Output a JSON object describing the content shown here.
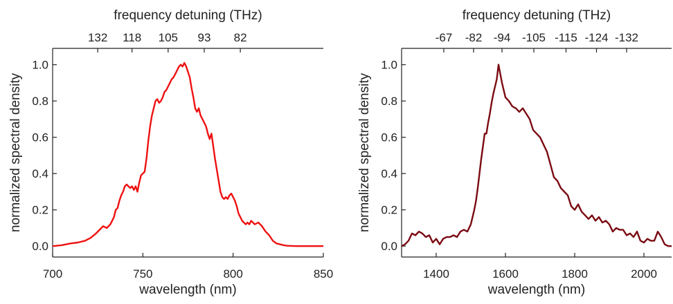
{
  "chart_data": [
    {
      "type": "line",
      "xlabel": "wavelength (nm)",
      "ylabel": "normalized spectral density",
      "top_xlabel": "frequency detuning (THz)",
      "xlim": [
        700,
        850
      ],
      "ylim": [
        -0.06,
        1.09
      ],
      "x_ticks": [
        700,
        750,
        800,
        850
      ],
      "y_ticks": [
        0.0,
        0.2,
        0.4,
        0.6,
        0.8,
        1.0
      ],
      "y_tick_labels": [
        "0.0",
        "0.2",
        "0.4",
        "0.6",
        "0.8",
        "1.0"
      ],
      "top_ticks": [
        {
          "label": "132",
          "at_x": 725
        },
        {
          "label": "118",
          "at_x": 744
        },
        {
          "label": "105",
          "at_x": 764
        },
        {
          "label": "93",
          "at_x": 784
        },
        {
          "label": "82",
          "at_x": 804
        }
      ],
      "grid": false,
      "color": "#ee1111",
      "series": [
        {
          "x": [
            700,
            705,
            710,
            714,
            718,
            721,
            724,
            726,
            728,
            730,
            732,
            734,
            735,
            736,
            737,
            738,
            739,
            740,
            741,
            742,
            743,
            744,
            745,
            746,
            747,
            748,
            749,
            750,
            751,
            752,
            753,
            754,
            755,
            756,
            757,
            758,
            759,
            760,
            761,
            762,
            763,
            764,
            765,
            766,
            767,
            768,
            769,
            770,
            771,
            772,
            773,
            774,
            775,
            776,
            777,
            778,
            779,
            780,
            781,
            782,
            783,
            784,
            785,
            786,
            787,
            788,
            789,
            790,
            791,
            792,
            793,
            794,
            795,
            796,
            797,
            798,
            799,
            800,
            801,
            802,
            803,
            804,
            805,
            806,
            807,
            808,
            809,
            810,
            812,
            814,
            816,
            818,
            820,
            822,
            824,
            826,
            828,
            830,
            835,
            840,
            845,
            850
          ],
          "y": [
            0.0,
            0.005,
            0.015,
            0.02,
            0.03,
            0.045,
            0.07,
            0.09,
            0.11,
            0.1,
            0.12,
            0.16,
            0.2,
            0.21,
            0.25,
            0.28,
            0.3,
            0.33,
            0.34,
            0.33,
            0.32,
            0.33,
            0.31,
            0.33,
            0.3,
            0.35,
            0.39,
            0.4,
            0.41,
            0.48,
            0.58,
            0.66,
            0.72,
            0.76,
            0.8,
            0.81,
            0.79,
            0.8,
            0.82,
            0.85,
            0.86,
            0.88,
            0.9,
            0.92,
            0.93,
            0.95,
            0.97,
            0.99,
            1.0,
            0.99,
            1.01,
            0.99,
            0.96,
            0.93,
            0.87,
            0.82,
            0.76,
            0.74,
            0.76,
            0.72,
            0.7,
            0.68,
            0.66,
            0.62,
            0.59,
            0.62,
            0.55,
            0.48,
            0.42,
            0.36,
            0.3,
            0.27,
            0.26,
            0.27,
            0.26,
            0.28,
            0.29,
            0.27,
            0.25,
            0.22,
            0.18,
            0.16,
            0.14,
            0.13,
            0.12,
            0.13,
            0.12,
            0.14,
            0.12,
            0.13,
            0.11,
            0.08,
            0.06,
            0.03,
            0.015,
            0.01,
            0.005,
            0.002,
            0.0,
            0.0,
            0.0,
            0.0
          ]
        }
      ]
    },
    {
      "type": "line",
      "xlabel": "wavelength (nm)",
      "ylabel": "normalized spectral density",
      "top_xlabel": "frequency detuning (THz)",
      "xlim": [
        1300,
        2080
      ],
      "ylim": [
        -0.06,
        1.09
      ],
      "x_ticks": [
        1400,
        1600,
        1800,
        2000
      ],
      "y_ticks": [
        0.0,
        0.2,
        0.4,
        0.6,
        0.8,
        1.0
      ],
      "y_tick_labels": [
        "0.0",
        "0.2",
        "0.4",
        "0.6",
        "0.8",
        "1.0"
      ],
      "top_ticks": [
        {
          "label": "-67",
          "at_x": 1422
        },
        {
          "label": "-82",
          "at_x": 1508
        },
        {
          "label": "-94",
          "at_x": 1590
        },
        {
          "label": "-105",
          "at_x": 1682
        },
        {
          "label": "-115",
          "at_x": 1775
        },
        {
          "label": "-124",
          "at_x": 1863
        },
        {
          "label": "-132",
          "at_x": 1950
        }
      ],
      "grid": false,
      "color": "#7a0a12",
      "series": [
        {
          "x": [
            1300,
            1310,
            1320,
            1330,
            1340,
            1350,
            1360,
            1370,
            1380,
            1390,
            1400,
            1410,
            1420,
            1430,
            1440,
            1450,
            1460,
            1470,
            1480,
            1490,
            1500,
            1510,
            1515,
            1520,
            1525,
            1530,
            1535,
            1540,
            1545,
            1550,
            1555,
            1560,
            1565,
            1570,
            1575,
            1580,
            1585,
            1590,
            1595,
            1600,
            1610,
            1620,
            1630,
            1640,
            1650,
            1660,
            1670,
            1680,
            1690,
            1700,
            1710,
            1720,
            1730,
            1740,
            1750,
            1760,
            1770,
            1780,
            1790,
            1800,
            1810,
            1820,
            1830,
            1840,
            1850,
            1860,
            1870,
            1880,
            1890,
            1900,
            1910,
            1920,
            1930,
            1940,
            1950,
            1960,
            1970,
            1980,
            1990,
            2000,
            2010,
            2020,
            2030,
            2040,
            2050,
            2060,
            2070,
            2080
          ],
          "y": [
            0.0,
            0.01,
            0.03,
            0.07,
            0.06,
            0.08,
            0.07,
            0.05,
            0.06,
            0.02,
            0.04,
            0.01,
            0.04,
            0.05,
            0.05,
            0.06,
            0.05,
            0.08,
            0.09,
            0.08,
            0.12,
            0.2,
            0.25,
            0.32,
            0.4,
            0.48,
            0.55,
            0.62,
            0.62,
            0.68,
            0.73,
            0.79,
            0.84,
            0.88,
            0.92,
            1.0,
            0.95,
            0.9,
            0.86,
            0.82,
            0.8,
            0.77,
            0.76,
            0.74,
            0.76,
            0.73,
            0.7,
            0.64,
            0.62,
            0.6,
            0.56,
            0.52,
            0.45,
            0.38,
            0.36,
            0.32,
            0.3,
            0.28,
            0.22,
            0.2,
            0.23,
            0.19,
            0.17,
            0.15,
            0.17,
            0.14,
            0.16,
            0.13,
            0.14,
            0.12,
            0.08,
            0.1,
            0.09,
            0.09,
            0.06,
            0.07,
            0.05,
            0.08,
            0.03,
            0.02,
            0.04,
            0.03,
            0.03,
            0.08,
            0.05,
            0.01,
            0.0,
            0.0
          ]
        }
      ]
    }
  ]
}
